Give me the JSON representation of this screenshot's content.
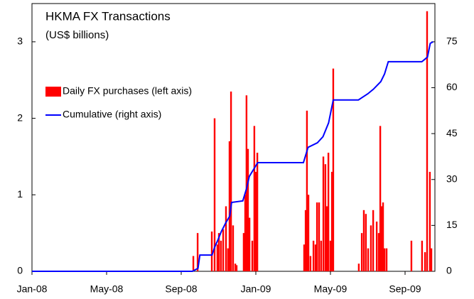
{
  "chart_data": {
    "type": "bar-line",
    "title": "HKMA FX Transactions",
    "subtitle": "(US$ billions)",
    "xlim": [
      0,
      21.6
    ],
    "xticks": [
      {
        "value": 0,
        "label": "Jan-08"
      },
      {
        "value": 4,
        "label": "May-08"
      },
      {
        "value": 8,
        "label": "Sep-08"
      },
      {
        "value": 12,
        "label": "Jan-09"
      },
      {
        "value": 16,
        "label": "May-09"
      },
      {
        "value": 20,
        "label": "Sep-09"
      }
    ],
    "ylim": [
      0,
      3.5
    ],
    "yticks": [
      0,
      1,
      2,
      3
    ],
    "y2lim": [
      0,
      87.5
    ],
    "y2ticks": [
      0,
      15,
      30,
      45,
      60,
      75
    ],
    "series": [
      {
        "name": "Daily FX purchases (left axis)",
        "type": "bar",
        "color": "#ff0000",
        "x": [
          8.65,
          8.88,
          9.64,
          9.79,
          9.94,
          10.02,
          10.13,
          10.25,
          10.4,
          10.51,
          10.59,
          10.67,
          10.78,
          10.9,
          10.97,
          11.35,
          11.43,
          11.5,
          11.58,
          11.66,
          11.81,
          11.92,
          12.0,
          12.08,
          14.59,
          14.67,
          14.74,
          14.82,
          14.93,
          15.09,
          15.2,
          15.28,
          15.39,
          15.5,
          15.62,
          15.73,
          15.81,
          15.89,
          16.0,
          16.08,
          16.15,
          17.52,
          17.68,
          17.79,
          17.9,
          18.02,
          18.17,
          18.29,
          18.48,
          18.59,
          18.67,
          18.74,
          18.82,
          18.9,
          19.01,
          20.34,
          20.91,
          21.07,
          21.18,
          21.33,
          21.41
        ],
        "values": [
          0.2,
          0.5,
          0.52,
          2.0,
          0.35,
          0.5,
          0.4,
          0.55,
          0.85,
          0.3,
          1.7,
          2.35,
          0.6,
          0.1,
          0.08,
          0.5,
          1.0,
          2.3,
          1.6,
          0.7,
          0.4,
          1.9,
          1.3,
          1.55,
          0.35,
          0.8,
          2.1,
          1.0,
          0.2,
          0.4,
          0.35,
          0.9,
          0.9,
          0.4,
          1.5,
          1.4,
          0.85,
          1.55,
          0.4,
          1.3,
          2.65,
          0.1,
          0.5,
          0.8,
          0.75,
          0.3,
          0.6,
          0.8,
          0.65,
          0.5,
          1.9,
          0.85,
          0.9,
          0.3,
          0.3,
          0.4,
          0.4,
          0.25,
          3.4,
          1.3,
          0.3
        ]
      },
      {
        "name": "Cumulative (right axis)",
        "type": "line",
        "color": "#0000ff",
        "axis": "y2",
        "x": [
          0,
          8.6,
          8.9,
          9.0,
          9.65,
          9.8,
          9.95,
          10.15,
          10.4,
          10.6,
          10.7,
          11.3,
          11.5,
          11.65,
          11.9,
          12.1,
          14.55,
          14.8,
          15.3,
          15.6,
          15.9,
          16.15,
          17.5,
          18.0,
          18.3,
          18.7,
          18.9,
          19.1,
          20.9,
          21.1,
          21.2,
          21.35,
          21.5
        ],
        "values": [
          0,
          0,
          1,
          5.3,
          5.3,
          8,
          10,
          13,
          16,
          18,
          22.5,
          23,
          27,
          31,
          33.5,
          35.5,
          35.5,
          40.5,
          42,
          44,
          48.5,
          56,
          56,
          58,
          59.5,
          62,
          64.5,
          68.5,
          68.5,
          69.5,
          70,
          74.5,
          75
        ]
      }
    ]
  }
}
